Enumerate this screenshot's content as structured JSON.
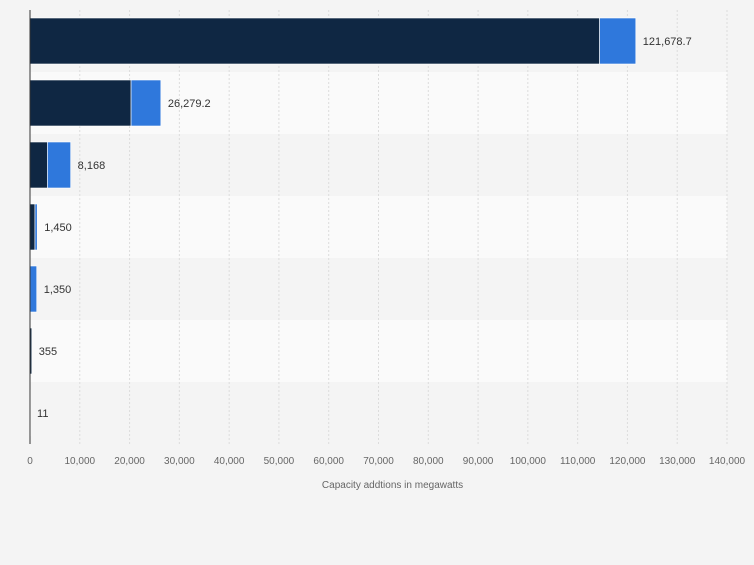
{
  "chart_data": {
    "type": "bar",
    "orientation": "horizontal",
    "stacked": true,
    "categories": [
      "",
      "",
      "",
      "",
      "",
      "",
      ""
    ],
    "series": [
      {
        "color": "#0f2743",
        "values": [
          114400,
          20300,
          3500,
          1000,
          0,
          355,
          11
        ]
      },
      {
        "color": "#2f78dc",
        "values": [
          7278.7,
          5979.2,
          4668,
          450,
          1350,
          0,
          0
        ]
      }
    ],
    "totals": [
      121678.7,
      26279.2,
      8168,
      1450,
      1350,
      355,
      11
    ],
    "data_labels": [
      "121,678.7",
      "26,279.2",
      "8,168",
      "1,450",
      "1,350",
      "355",
      "11"
    ],
    "xlim": [
      0,
      140000
    ],
    "x_ticks": [
      0,
      10000,
      20000,
      30000,
      40000,
      50000,
      60000,
      70000,
      80000,
      90000,
      100000,
      110000,
      120000,
      130000,
      140000
    ],
    "x_tick_labels": [
      "0",
      "10,000",
      "20,000",
      "30,000",
      "40,000",
      "50,000",
      "60,000",
      "70,000",
      "80,000",
      "90,000",
      "100,000",
      "110,000",
      "120,000",
      "130,000",
      "140,000"
    ],
    "xlabel": "Capacity addtions in megawatts",
    "ylabel": "",
    "title": "",
    "grid": true,
    "legend": "none",
    "band_colors": [
      "#f4f4f4",
      "#fafafa"
    ],
    "grid_color": "#dcdcdc",
    "axis_color": "#333333"
  }
}
